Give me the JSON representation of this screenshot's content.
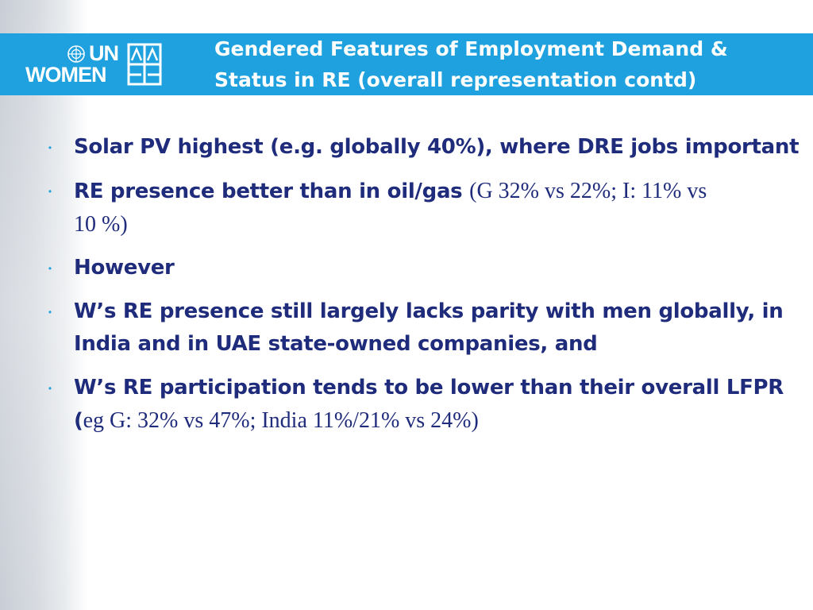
{
  "header": {
    "logo_line1": "UN",
    "logo_line2": "WOMEN",
    "title_line1": "Gendered Features of Employment Demand &",
    "title_line2": "Status in RE (overall representation contd)"
  },
  "bullets": [
    {
      "lines": [
        {
          "bold": "Solar PV highest (e.g. globally 40%), where DRE jobs important"
        }
      ]
    },
    {
      "lines": [
        {
          "bold": "RE presence better than in oil/gas ",
          "serif": "(G 32% vs 22%; I: 11% vs"
        },
        {
          "serif": "10 %)"
        }
      ]
    },
    {
      "lines": [
        {
          "bold": "However"
        }
      ]
    },
    {
      "lines": [
        {
          "bold": "W’s RE presence still largely lacks parity with men globally, in"
        },
        {
          "bold": "India and in UAE state-owned companies, and"
        }
      ]
    },
    {
      "lines": [
        {
          "bold": "W’s RE participation tends to be lower than their overall LFPR"
        },
        {
          "bold": "(",
          "serif": "eg G: 32% vs 47%; India 11%/21% vs 24%)"
        }
      ]
    }
  ],
  "colors": {
    "header_band": "#1ea1de",
    "body_text": "#1f2b7b",
    "bullet": "#1ea1de"
  },
  "icons": {
    "logo_globe": "un-globe-icon",
    "logo_emblem": "un-women-emblem-icon",
    "bullet": "bullet-dot-icon"
  }
}
